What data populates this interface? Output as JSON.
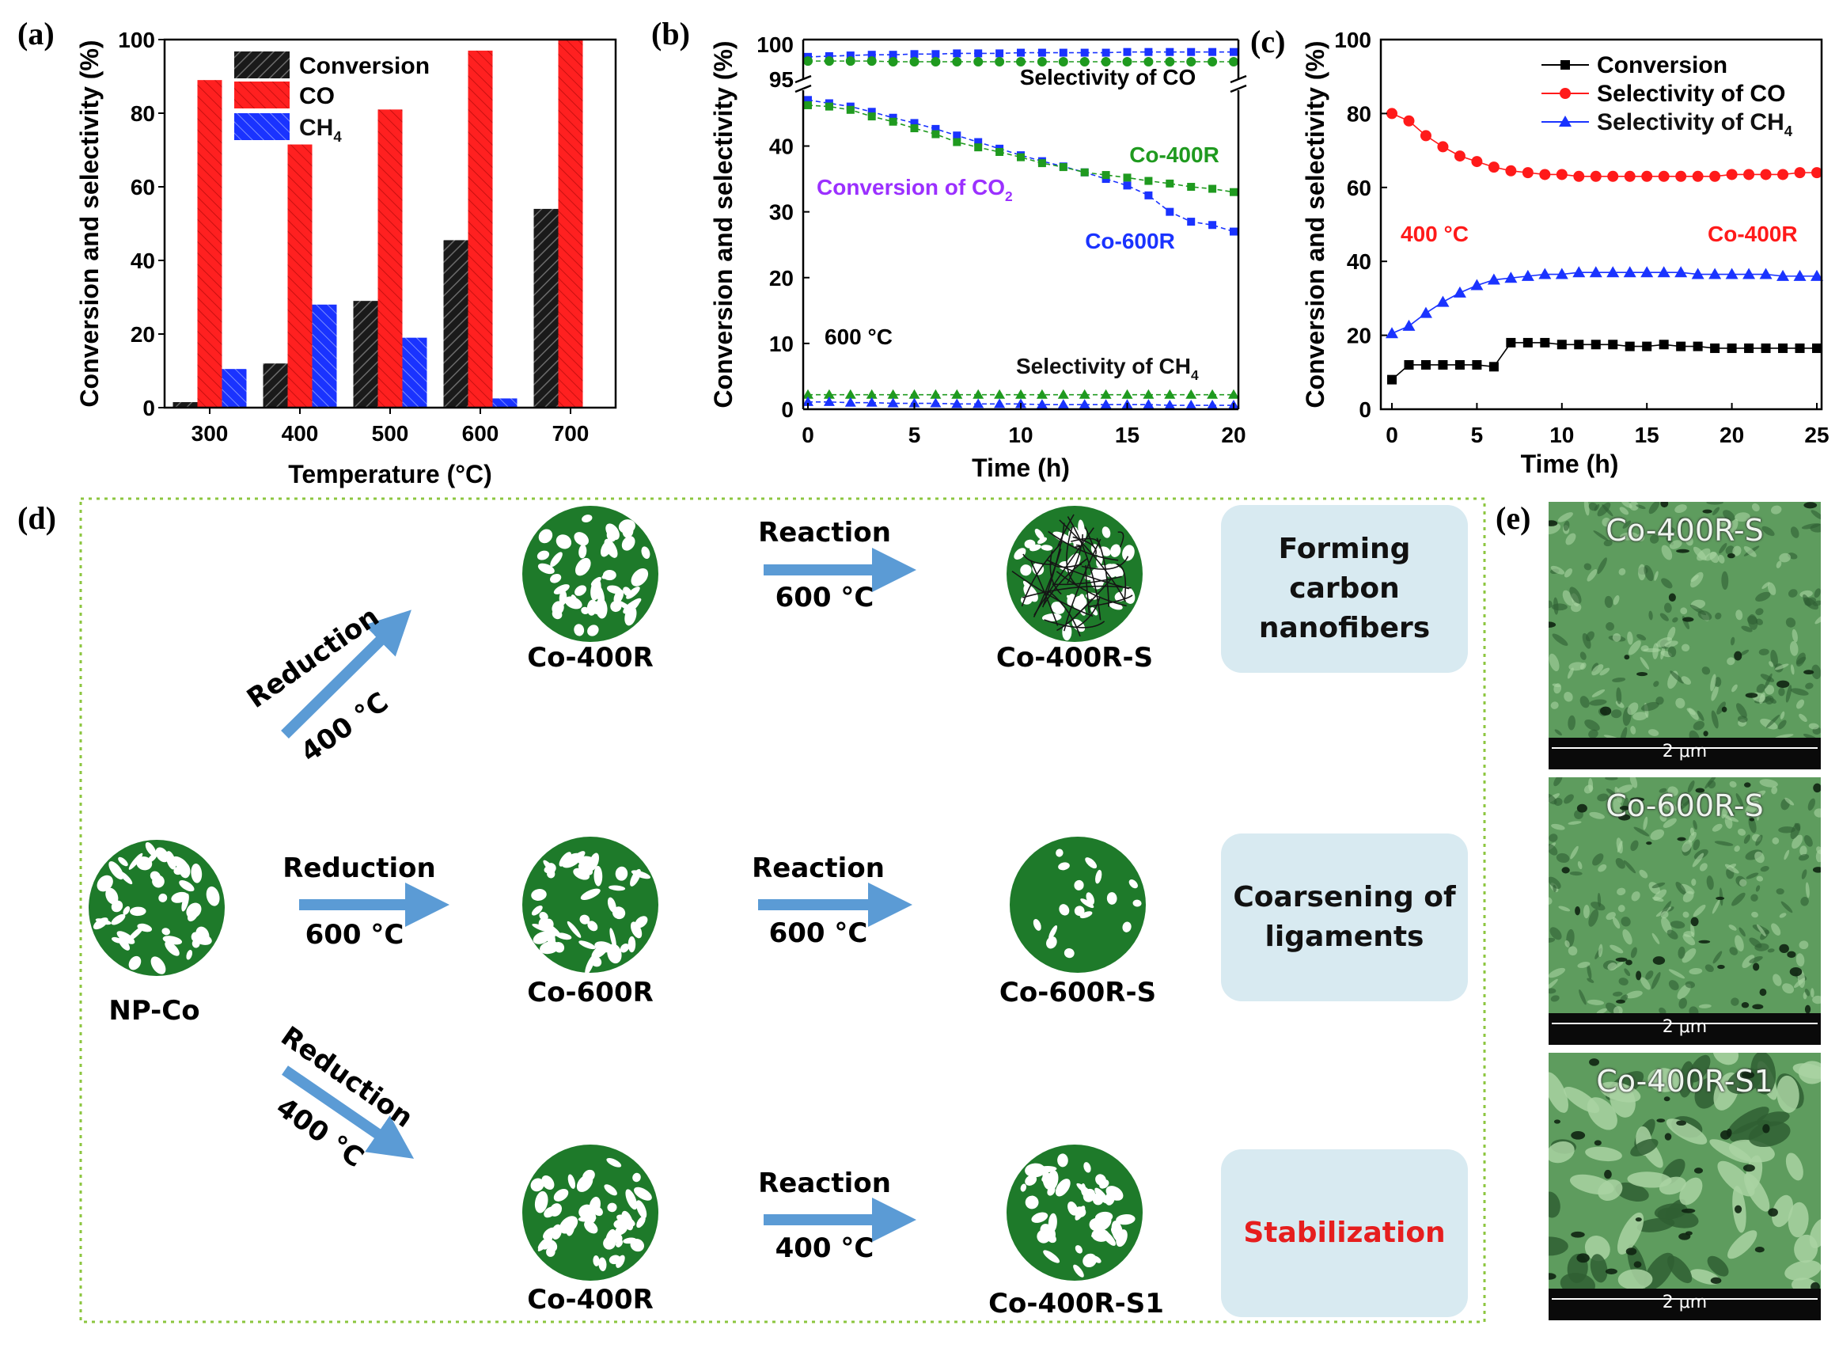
{
  "panel_labels": {
    "a": "(a)",
    "b": "(b)",
    "c": "(c)",
    "d": "(d)",
    "e": "(e)"
  },
  "chart_data": [
    {
      "id": "a",
      "type": "bar",
      "categories": [
        "300",
        "400",
        "500",
        "600",
        "700"
      ],
      "series": [
        {
          "name": "Conversion",
          "color": "#1a1a1a",
          "values": [
            1.5,
            12,
            29,
            45.5,
            54
          ]
        },
        {
          "name": "CO",
          "color": "#ff2020",
          "values": [
            89,
            71.5,
            81,
            97,
            100
          ]
        },
        {
          "name": "CH4",
          "legend_main": "CH",
          "legend_sub": "4",
          "color": "#1a33ff",
          "values": [
            10.5,
            28,
            19,
            2.5,
            0
          ]
        }
      ],
      "xlabel": "Temperature (°C)",
      "ylabel": "Conversion and selectivity (%)",
      "ylim": [
        0,
        100
      ],
      "yticks": [
        "0",
        "20",
        "40",
        "60",
        "80",
        "100"
      ],
      "legend_position": "top-left"
    },
    {
      "id": "b",
      "type": "line",
      "x": [
        0,
        1,
        2,
        3,
        4,
        5,
        6,
        7,
        8,
        9,
        10,
        11,
        12,
        13,
        14,
        15,
        16,
        17,
        18,
        19,
        20
      ],
      "xlim": [
        0,
        20
      ],
      "xticks": [
        "0",
        "5",
        "10",
        "15",
        "20"
      ],
      "ylim_lower": [
        0,
        48
      ],
      "ylim_upper": [
        95,
        100
      ],
      "yticks_lower": [
        "0",
        "10",
        "20",
        "30",
        "40"
      ],
      "yticks_upper": [
        "95",
        "100"
      ],
      "xlabel": "Time (h)",
      "ylabel": "Conversion and selectivity (%)",
      "series": [
        {
          "name": "Selectivity of CO Co-600R",
          "color": "#1a33ff",
          "marker": "square",
          "values": [
            98.2,
            98.3,
            98.4,
            98.5,
            98.5,
            98.6,
            98.6,
            98.7,
            98.7,
            98.7,
            98.8,
            98.8,
            98.8,
            98.8,
            98.8,
            98.9,
            98.9,
            98.9,
            98.9,
            98.9,
            98.9
          ]
        },
        {
          "name": "Selectivity of CO Co-400R",
          "color": "#1f9a1f",
          "marker": "circle",
          "values": [
            97.6,
            97.6,
            97.6,
            97.6,
            97.5,
            97.5,
            97.5,
            97.5,
            97.5,
            97.5,
            97.5,
            97.5,
            97.5,
            97.5,
            97.5,
            97.5,
            97.5,
            97.5,
            97.5,
            97.5,
            97.5
          ]
        },
        {
          "name": "Conversion of CO2 Co-600R",
          "color": "#1a33ff",
          "marker": "square",
          "values": [
            47,
            46.5,
            46,
            45.2,
            44.3,
            43.5,
            42.6,
            41.6,
            40.6,
            39.6,
            38.6,
            37.7,
            36.9,
            36,
            35,
            34,
            32.5,
            30,
            28.5,
            28,
            27
          ]
        },
        {
          "name": "Conversion of CO2 Co-400R",
          "color": "#1f9a1f",
          "marker": "square",
          "values": [
            46.2,
            46,
            45.5,
            44.5,
            43.7,
            42.7,
            41.8,
            40.6,
            39.8,
            39.1,
            38.3,
            37.4,
            36.8,
            36,
            35.6,
            35.2,
            34.7,
            34.3,
            33.8,
            33.5,
            33
          ]
        },
        {
          "name": "Selectivity of CH4 Co-400R",
          "color": "#1f9a1f",
          "marker": "triangle",
          "values": [
            2.2,
            2.2,
            2.2,
            2.2,
            2.2,
            2.2,
            2.2,
            2.2,
            2.2,
            2.2,
            2.2,
            2.2,
            2.2,
            2.2,
            2.2,
            2.2,
            2.2,
            2.2,
            2.2,
            2.2,
            2.2
          ]
        },
        {
          "name": "Selectivity of CH4 Co-600R",
          "color": "#1a33ff",
          "marker": "triangle",
          "values": [
            1.1,
            1.1,
            1.0,
            1.0,
            0.9,
            0.9,
            0.9,
            0.8,
            0.8,
            0.8,
            0.8,
            0.7,
            0.7,
            0.7,
            0.7,
            0.7,
            0.7,
            0.6,
            0.6,
            0.6,
            0.6
          ]
        }
      ],
      "annotations": {
        "sel_co": "Selectivity of CO",
        "co400r": "Co-400R",
        "conv_main": "Conversion of CO",
        "conv_sub": "2",
        "co600r": "Co-600R",
        "temp": "600 °C",
        "sel_ch4_main": "Selectivity of CH",
        "sel_ch4_sub": "4"
      }
    },
    {
      "id": "c",
      "type": "line",
      "x": [
        0,
        1,
        2,
        3,
        4,
        5,
        6,
        7,
        8,
        9,
        10,
        11,
        12,
        13,
        14,
        15,
        16,
        17,
        18,
        19,
        20,
        21,
        22,
        23,
        24,
        25
      ],
      "xlim": [
        0,
        25
      ],
      "ylim": [
        0,
        100
      ],
      "xticks": [
        "0",
        "5",
        "10",
        "15",
        "20",
        "25"
      ],
      "yticks": [
        "0",
        "20",
        "40",
        "60",
        "80",
        "100"
      ],
      "xlabel": "Time (h)",
      "ylabel": "Conversion and selectivity (%)",
      "series": [
        {
          "name": "Conversion",
          "color": "#000000",
          "marker": "square",
          "values": [
            8,
            12,
            12,
            12,
            12,
            12,
            11.5,
            18,
            18,
            18,
            17.5,
            17.5,
            17.5,
            17.5,
            17,
            17,
            17.5,
            17,
            17,
            16.5,
            16.5,
            16.5,
            16.5,
            16.5,
            16.5,
            16.5
          ]
        },
        {
          "name": "Selectivity of CO",
          "color": "#ff1a1a",
          "marker": "circle",
          "values": [
            80,
            78,
            74,
            71,
            68.5,
            67,
            65.5,
            64.5,
            64,
            63.5,
            63.5,
            63,
            63,
            63,
            63,
            63,
            63,
            63,
            63,
            63,
            63.5,
            63.5,
            63.5,
            63.5,
            64,
            64
          ]
        },
        {
          "name": "Selectivity of CH4",
          "legend_main": "Selectivity of CH",
          "legend_sub": "4",
          "color": "#1a33ff",
          "marker": "triangle",
          "values": [
            20.5,
            22.5,
            26,
            29,
            31.5,
            33.5,
            35,
            35.5,
            36,
            36.5,
            36.5,
            37,
            37,
            37,
            37,
            37,
            37,
            37,
            36.5,
            36.5,
            36.5,
            36.5,
            36.5,
            36,
            36,
            36
          ]
        }
      ],
      "annotations": {
        "temp": "400 °C",
        "sample": "Co-400R"
      }
    }
  ],
  "schematic": {
    "start": "NP-Co",
    "reduction": "Reduction",
    "reaction": "Reaction",
    "t400": "400 °C",
    "t600": "600 °C",
    "co400r": "Co-400R",
    "co600r": "Co-600R",
    "co400r_s": "Co-400R-S",
    "co600r_s": "Co-600R-S",
    "co400r_s1": "Co-400R-S1",
    "box1": "Forming carbon nanofibers",
    "box2": "Coarsening of ligaments",
    "box3": "Stabilization"
  },
  "sem": {
    "img1": "Co-400R-S",
    "img2": "Co-600R-S",
    "img3": "Co-400R-S1",
    "scale": "2 μm"
  }
}
